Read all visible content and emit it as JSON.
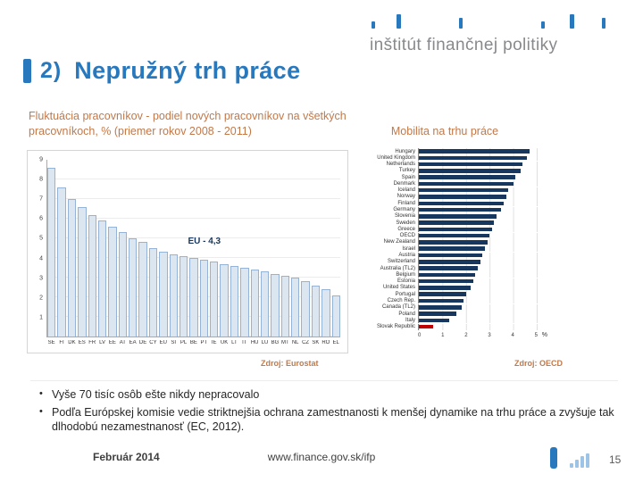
{
  "logo": {
    "text": "inštitút finančnej politiky"
  },
  "title": {
    "number": "2)",
    "text": "Nepružný trh práce"
  },
  "ui": {
    "bullet_char": "•"
  },
  "chart_data": [
    {
      "type": "bar",
      "title": "Fluktuácia pracovníkov - podiel nových pracovníkov na všetkých pracovníkoch, % (priemer rokov 2008 - 2011)",
      "source": "Zdroj: Eurostat",
      "categories": [
        "SE",
        "FI",
        "DK",
        "ES",
        "FR",
        "LV",
        "EE",
        "AT",
        "EA",
        "DE",
        "CY",
        "EU",
        "SI",
        "PL",
        "BE",
        "PT",
        "IE",
        "UK",
        "LT",
        "IT",
        "HU",
        "LU",
        "BG",
        "MT",
        "NL",
        "CZ",
        "SK",
        "RO",
        "EL"
      ],
      "values": [
        8.6,
        7.6,
        7.0,
        6.6,
        6.2,
        5.9,
        5.6,
        5.3,
        5.0,
        4.8,
        4.5,
        4.3,
        4.2,
        4.1,
        4.0,
        3.9,
        3.8,
        3.7,
        3.6,
        3.5,
        3.4,
        3.3,
        3.2,
        3.1,
        3.0,
        2.8,
        2.6,
        2.4,
        2.1
      ],
      "ylim": [
        0,
        9
      ],
      "yticks": [
        9,
        8,
        7,
        6,
        5,
        4,
        3,
        2,
        1
      ],
      "grid": "horizontal",
      "annotation": {
        "label": "EU - 4,3",
        "value": 4.3
      },
      "bar_color": "#dce6f1",
      "bar_border_color": "#95b3d7"
    },
    {
      "type": "bar",
      "orientation": "horizontal",
      "title": "Mobilita na trhu práce",
      "source": "Zdroj: OECD",
      "categories": [
        "Hungary",
        "United Kingdom",
        "Netherlands",
        "Turkey",
        "Spain",
        "Denmark",
        "Iceland",
        "Norway",
        "Finland",
        "Germany",
        "Slovenia",
        "Sweden",
        "Greece",
        "OECD",
        "New Zealand",
        "Israel",
        "Austria",
        "Switzerland",
        "Australia (TL2)",
        "Belgium",
        "Estonia",
        "United States",
        "Portugal",
        "Czech Rep.",
        "Canada (TL2)",
        "Poland",
        "Italy",
        "Slovak Republic"
      ],
      "values": [
        4.7,
        4.6,
        4.4,
        4.3,
        4.1,
        4.0,
        3.8,
        3.7,
        3.6,
        3.5,
        3.3,
        3.2,
        3.1,
        3.0,
        2.9,
        2.8,
        2.7,
        2.6,
        2.5,
        2.4,
        2.3,
        2.2,
        2.0,
        1.9,
        1.8,
        1.6,
        1.3,
        0.6
      ],
      "xlim": [
        0,
        5
      ],
      "xticks": [
        0,
        1,
        2,
        3,
        4,
        5
      ],
      "unit": "%",
      "grid": "vertical",
      "bar_color": "#17375e",
      "highlight_category": "Slovak Republic",
      "highlight_color": "#c00000"
    }
  ],
  "bullets": [
    "Vyše 70 tisíc osôb ešte nikdy nepracovalo",
    "Podľa Európskej komisie vedie striktnejšia ochrana zamestnanosti k menšej dynamike na trhu práce a zvyšuje tak dlhodobú nezamestnanosť (EC, 2012)."
  ],
  "footer": {
    "date": "Február 2014",
    "url": "www.finance.gov.sk/ifp",
    "page": "15"
  },
  "colors": {
    "accent_blue": "#2878be",
    "heading_orange": "#c1794a",
    "bar_navy": "#17375e",
    "highlight_red": "#c00000"
  }
}
